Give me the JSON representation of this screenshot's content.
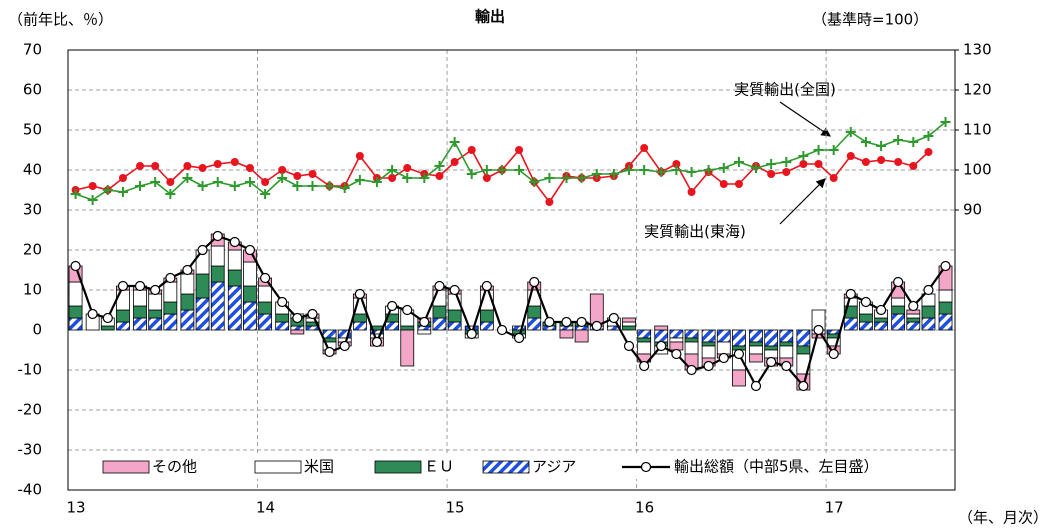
{
  "chart_data": {
    "type": "bar-line",
    "title": "輸出",
    "y_label": "（前年比、％）",
    "y2_label": "（基準時=100）",
    "x_label": "（年、月次）",
    "x": [
      13.04,
      13.13,
      13.21,
      13.29,
      13.38,
      13.46,
      13.54,
      13.63,
      13.71,
      13.79,
      13.88,
      13.96,
      14.04,
      14.13,
      14.21,
      14.29,
      14.38,
      14.46,
      14.54,
      14.63,
      14.71,
      14.79,
      14.88,
      14.96,
      15.04,
      15.13,
      15.21,
      15.29,
      15.38,
      15.46,
      15.54,
      15.63,
      15.71,
      15.79,
      15.88,
      15.96,
      16.04,
      16.13,
      16.21,
      16.29,
      16.38,
      16.46,
      16.54,
      16.63,
      16.71,
      16.79,
      16.88,
      16.96,
      17.04,
      17.13,
      17.21,
      17.29,
      17.38,
      17.46,
      17.54,
      17.63
    ],
    "xlim": [
      13,
      17.68
    ],
    "xticks": [
      13,
      14,
      15,
      16,
      17
    ],
    "ylim": [
      -40,
      70
    ],
    "yticks": [
      -40,
      -30,
      -20,
      -10,
      0,
      10,
      20,
      30,
      40,
      50,
      60,
      70
    ],
    "y2lim": [
      20,
      130
    ],
    "y2ticks": [
      90,
      100,
      110,
      120,
      130
    ],
    "grid": true,
    "series": [
      {
        "name": "その他",
        "kind": "bar",
        "color": "#f4a6c8",
        "values": [
          4,
          0,
          0,
          1,
          1,
          1,
          1,
          1,
          0,
          3,
          2,
          3,
          2,
          0,
          -1,
          1,
          -1,
          -1,
          1,
          -2,
          0,
          -9,
          1,
          1,
          1,
          0,
          1,
          0,
          0,
          2,
          0,
          -2,
          -3,
          8,
          0,
          1,
          -2,
          1,
          -2,
          -4,
          -2,
          -1,
          -4,
          -2,
          -2,
          -2,
          -4,
          -1,
          -2,
          1,
          0,
          0,
          4,
          1,
          0,
          6
        ]
      },
      {
        "name": "米国",
        "kind": "bar",
        "color": "#ffffff",
        "values": [
          6,
          4,
          2,
          5,
          4,
          4,
          5,
          5,
          6,
          5,
          5,
          6,
          4,
          3,
          1,
          1,
          -2,
          -1,
          4,
          -1,
          2,
          4,
          -1,
          4,
          4,
          -1,
          5,
          0,
          -1,
          4,
          0,
          0,
          0,
          0,
          2,
          1,
          -3,
          -2,
          -1,
          -3,
          -3,
          -3,
          -5,
          -2,
          -2,
          -3,
          -5,
          5,
          -2,
          2,
          3,
          2,
          2,
          1,
          3,
          3
        ]
      },
      {
        "name": "ＥＵ",
        "kind": "bar",
        "color": "#2e8b57",
        "values": [
          3,
          0,
          1,
          3,
          3,
          2,
          3,
          4,
          6,
          4,
          4,
          4,
          3,
          2,
          2,
          1,
          -1,
          0,
          2,
          1,
          2,
          1,
          1,
          3,
          3,
          -1,
          3,
          0,
          -1,
          3,
          1,
          1,
          1,
          0,
          0,
          1,
          -1,
          -1,
          0,
          -1,
          -1,
          0,
          -1,
          -1,
          -1,
          -1,
          -2,
          0,
          -1,
          3,
          2,
          1,
          2,
          1,
          3,
          3
        ]
      },
      {
        "name": "アジア",
        "kind": "bar",
        "hatch": true,
        "color": "#1f4fe0",
        "values": [
          3,
          0,
          0,
          2,
          3,
          3,
          4,
          5,
          8,
          12,
          11,
          7,
          4,
          2,
          1,
          1,
          -2,
          -2,
          2,
          -1,
          2,
          0,
          1,
          3,
          2,
          1,
          2,
          0,
          1,
          3,
          1,
          1,
          1,
          1,
          1,
          0,
          -2,
          -3,
          -2,
          -2,
          -3,
          -3,
          -4,
          -3,
          -4,
          -3,
          -4,
          -1,
          -1,
          3,
          2,
          2,
          4,
          2,
          3,
          4
        ]
      },
      {
        "name": "輸出総額（中部5県、左目盛）",
        "kind": "line",
        "marker": "circle",
        "color": "#000000",
        "values": [
          16,
          4,
          3,
          11,
          11,
          10,
          13,
          15,
          20,
          23.5,
          22,
          20,
          13,
          7,
          3,
          4,
          -5.5,
          -4,
          9,
          -3,
          6,
          5,
          2,
          11,
          10,
          -1,
          11,
          0,
          -2,
          12,
          2,
          2,
          2,
          1,
          3,
          -4,
          -9,
          -4,
          -6,
          -10,
          -9,
          -7,
          -6,
          -14,
          -8,
          -9,
          -14,
          0,
          -6,
          9,
          7,
          5,
          12,
          6,
          10,
          16
        ]
      },
      {
        "name": "実質輸出(全国)",
        "kind": "line",
        "marker": "plus",
        "axis": "y2",
        "color": "#2e9a2e",
        "values": [
          94,
          92.5,
          95,
          94.5,
          96,
          97,
          94,
          98,
          96,
          97,
          96,
          97,
          94,
          98,
          96,
          96,
          96,
          95.5,
          97.5,
          97,
          100,
          98,
          98,
          101,
          107,
          99,
          100,
          100,
          100,
          97,
          98,
          98,
          98,
          99,
          99,
          100,
          100,
          99.5,
          100,
          99.5,
          100,
          100.5,
          102,
          100.5,
          101.5,
          102,
          103.5,
          105,
          105,
          109.5,
          107,
          106,
          107.5,
          107,
          108.5,
          112
        ]
      },
      {
        "name": "実質輸出(東海)",
        "kind": "line",
        "marker": "dot",
        "axis": "y2",
        "color": "#e8141e",
        "values": [
          95,
          96,
          95,
          98,
          101,
          101,
          97,
          101,
          100.5,
          101.5,
          102,
          100.5,
          97,
          100,
          98.5,
          99,
          96,
          96,
          103.5,
          98,
          98,
          100.5,
          99,
          98.5,
          102,
          105,
          98,
          100,
          105,
          97,
          92,
          98.5,
          98,
          98,
          98.5,
          101,
          105.5,
          99.5,
          101.5,
          94.5,
          99.5,
          96.5,
          96.5,
          101,
          99,
          99.5,
          101.5,
          101.5,
          98,
          103.5,
          102,
          102.5,
          102,
          101,
          104.5,
          null
        ]
      }
    ]
  }
}
